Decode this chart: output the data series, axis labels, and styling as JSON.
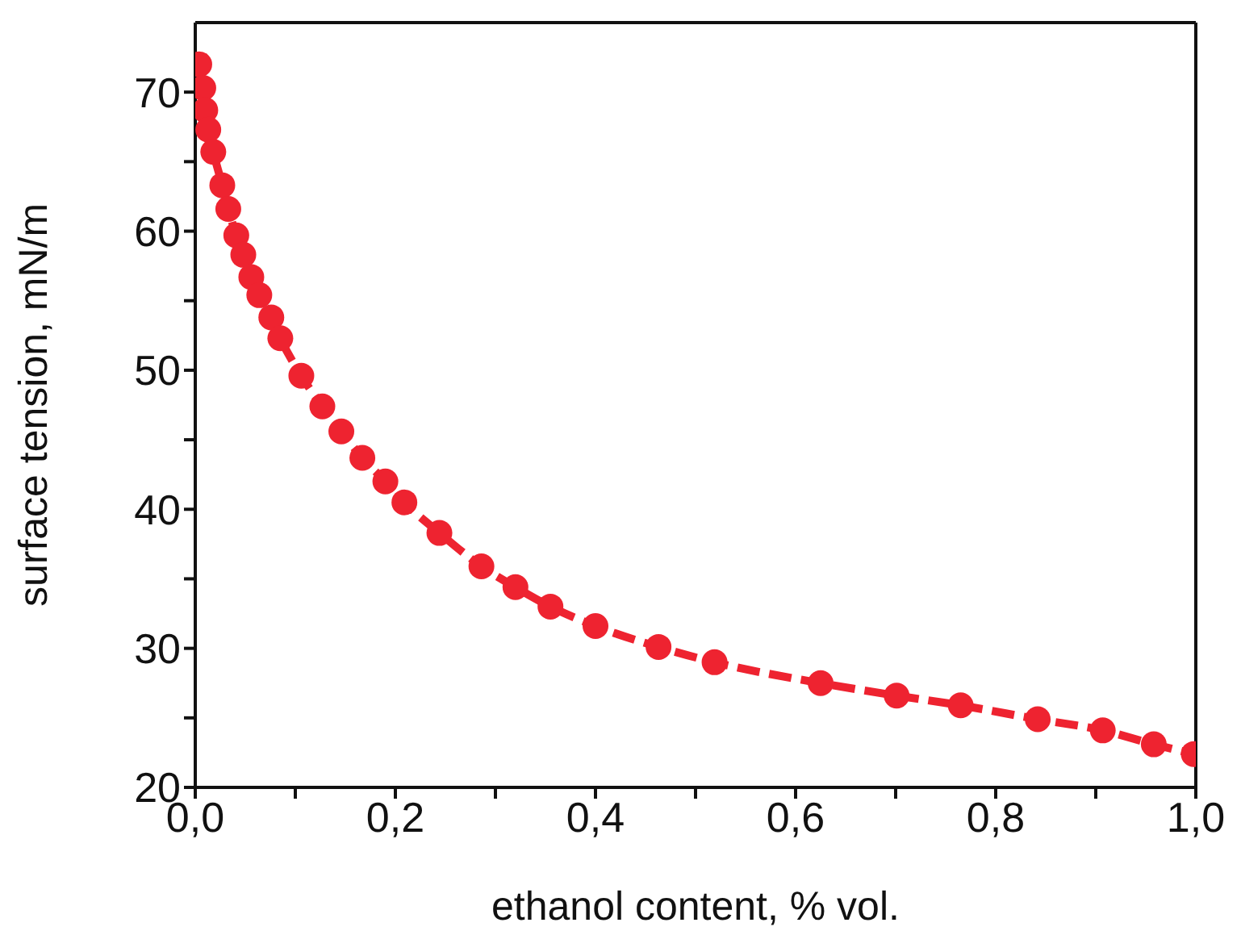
{
  "chart_data": {
    "type": "line",
    "xlabel": "ethanol content, % vol.",
    "ylabel": "surface tension, mN/m",
    "xlim": [
      0,
      1
    ],
    "ylim": [
      20,
      75
    ],
    "xticks": [
      {
        "value": 0,
        "label": "0,0"
      },
      {
        "value": 0.1,
        "label": null
      },
      {
        "value": 0.2,
        "label": "0,2"
      },
      {
        "value": 0.3,
        "label": null
      },
      {
        "value": 0.4,
        "label": "0,4"
      },
      {
        "value": 0.5,
        "label": null
      },
      {
        "value": 0.6,
        "label": "0,6"
      },
      {
        "value": 0.7,
        "label": null
      },
      {
        "value": 0.8,
        "label": "0,8"
      },
      {
        "value": 0.9,
        "label": null
      },
      {
        "value": 1,
        "label": "1,0"
      }
    ],
    "yticks": [
      20,
      {
        "value": 25,
        "label": null
      },
      30,
      {
        "value": 35,
        "label": null
      },
      40,
      {
        "value": 45,
        "label": null
      },
      50,
      {
        "value": 55,
        "label": null
      },
      60,
      {
        "value": 65,
        "label": null
      },
      70
    ],
    "grid": false,
    "legend": false,
    "marker": "circle",
    "line_style": "dashed",
    "series": [
      {
        "color": "#ee2330",
        "x": [
          0.004,
          0.008,
          0.01,
          0.013,
          0.018,
          0.027,
          0.033,
          0.041,
          0.048,
          0.056,
          0.064,
          0.076,
          0.085,
          0.106,
          0.127,
          0.146,
          0.167,
          0.19,
          0.209,
          0.244,
          0.286,
          0.32,
          0.355,
          0.4,
          0.463,
          0.519,
          0.625,
          0.701,
          0.765,
          0.842,
          0.907,
          0.958,
          0.998
        ],
        "values": [
          72.0,
          70.3,
          68.7,
          67.3,
          65.7,
          63.3,
          61.6,
          59.7,
          58.3,
          56.7,
          55.4,
          53.8,
          52.3,
          49.6,
          47.4,
          45.6,
          43.7,
          42.0,
          40.5,
          38.3,
          35.9,
          34.4,
          33.0,
          31.6,
          30.1,
          29.0,
          27.5,
          26.6,
          25.9,
          24.9,
          24.1,
          23.1,
          22.4
        ]
      }
    ]
  }
}
